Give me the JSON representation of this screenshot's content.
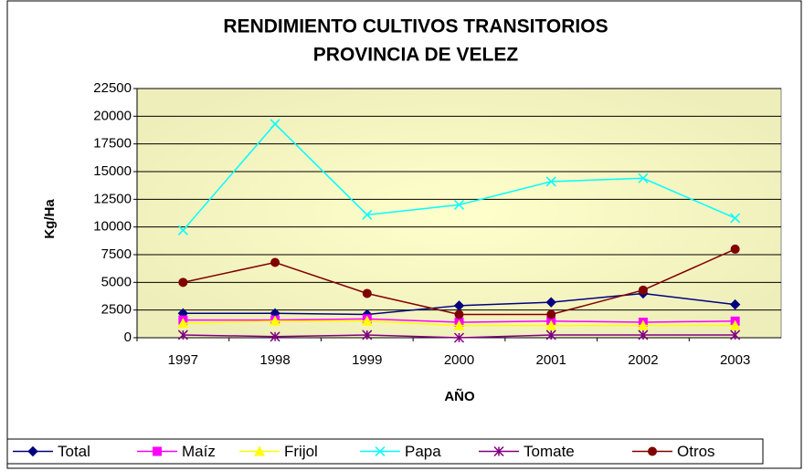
{
  "chart_data": {
    "type": "line",
    "title": [
      "RENDIMIENTO CULTIVOS TRANSITORIOS",
      "PROVINCIA DE VELEZ"
    ],
    "y_label": "Kg/Ha",
    "x_label": "AÑO",
    "categories": [
      "1997",
      "1998",
      "1999",
      "2000",
      "2001",
      "2002",
      "2003"
    ],
    "series": [
      {
        "name": "Total",
        "color": "#000080",
        "marker": "diamond",
        "values": [
          2200,
          2200,
          2100,
          2900,
          3200,
          4000,
          3000
        ]
      },
      {
        "name": "Maíz",
        "color": "#ff00ff",
        "marker": "square",
        "values": [
          1600,
          1600,
          1700,
          1400,
          1500,
          1400,
          1500
        ]
      },
      {
        "name": "Frijol",
        "color": "#ffff00",
        "marker": "triangle",
        "values": [
          1300,
          1500,
          1500,
          1100,
          1100,
          1100,
          1100
        ]
      },
      {
        "name": "Papa",
        "color": "#00ffff",
        "marker": "x",
        "values": [
          9700,
          19300,
          11100,
          12000,
          14100,
          14400,
          10800
        ]
      },
      {
        "name": "Tomate",
        "color": "#800080",
        "marker": "star",
        "values": [
          250,
          100,
          250,
          0,
          250,
          250,
          250
        ]
      },
      {
        "name": "Otros",
        "color": "#800000",
        "marker": "circle",
        "values": [
          5000,
          6800,
          4000,
          2100,
          2100,
          4300,
          8000
        ]
      }
    ],
    "ylim": [
      0,
      22500
    ],
    "yticks": [
      0,
      2500,
      5000,
      7500,
      10000,
      12500,
      15000,
      17500,
      20000,
      22500
    ],
    "grid": true,
    "legend": "bottom"
  }
}
